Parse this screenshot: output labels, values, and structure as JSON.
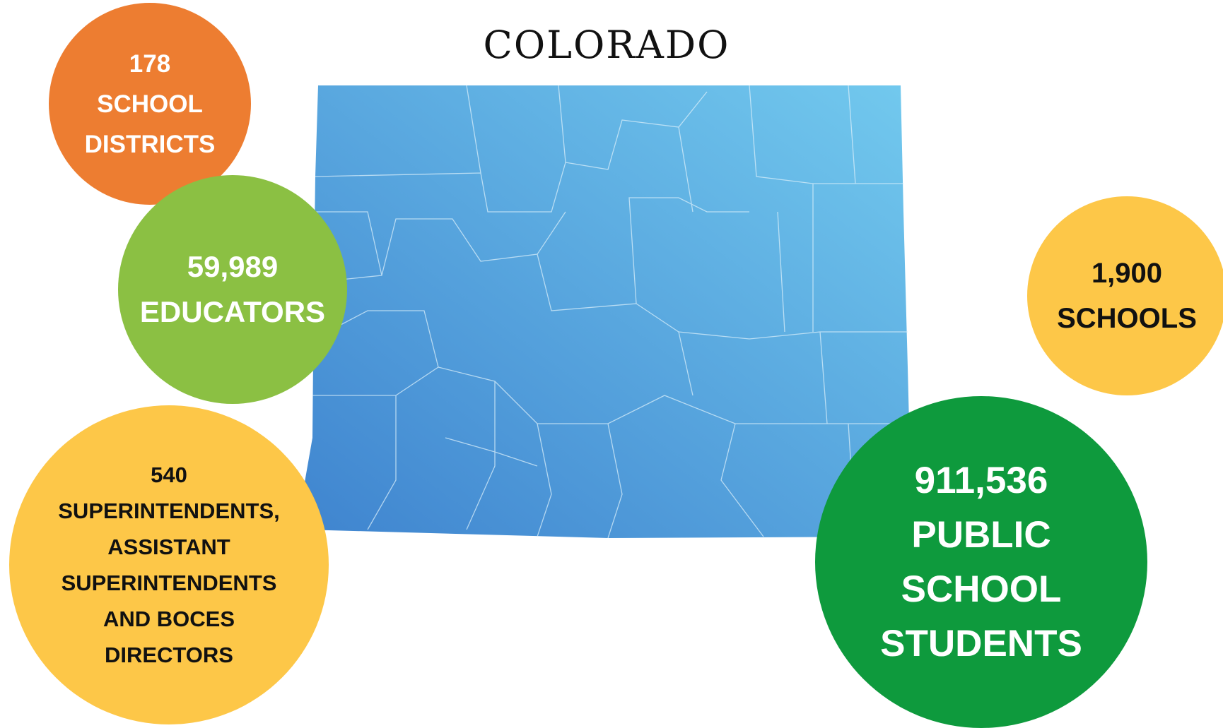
{
  "title": "COLORADO",
  "bubbles": [
    {
      "lines": [
        "178",
        "SCHOOL",
        "DISTRICTS"
      ]
    },
    {
      "lines": [
        "59,989",
        "EDUCATORS"
      ]
    },
    {
      "lines": [
        "540",
        "SUPERINTENDENTS,",
        "ASSISTANT",
        "SUPERINTENDENTS",
        "AND BOCES",
        "DIRECTORS"
      ]
    },
    {
      "lines": [
        "1,900",
        "SCHOOLS"
      ]
    },
    {
      "lines": [
        "911,536",
        "PUBLIC",
        "SCHOOL",
        "STUDENTS"
      ]
    }
  ]
}
